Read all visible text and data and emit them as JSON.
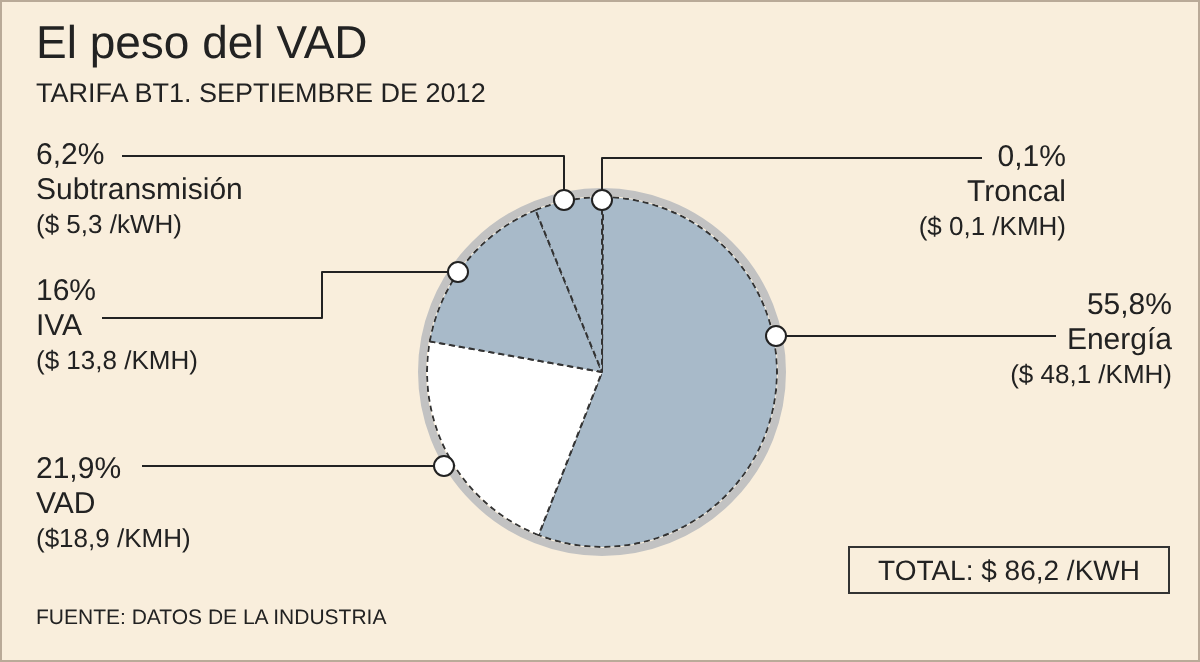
{
  "chart_data": {
    "type": "pie",
    "title": "El peso del VAD",
    "subtitle": "TARIFA BT1. SEPTIEMBRE DE 2012",
    "categories": [
      "Troncal",
      "Energía",
      "VAD",
      "IVA",
      "Subtransmisión"
    ],
    "values": [
      0.1,
      55.8,
      21.9,
      16,
      6.2
    ],
    "colors": [
      "#a8bac9",
      "#a8bac9",
      "#ffffff",
      "#a8bac9",
      "#a8bac9"
    ],
    "value_labels": [
      "0,1%",
      "55,8%",
      "21,9%",
      "16%",
      "6,2%"
    ],
    "annotations": [
      "($ 0,1 /KMH)",
      "($ 48,1 /KMH)",
      "($18,9 /KMH)",
      "($ 13,8 /KMH)",
      "($ 5,3 /kWH)",
      "TOTAL: $ 86,2 /KWH",
      "FUENTE: DATOS DE LA INDUSTRIA"
    ],
    "legend": false
  }
}
